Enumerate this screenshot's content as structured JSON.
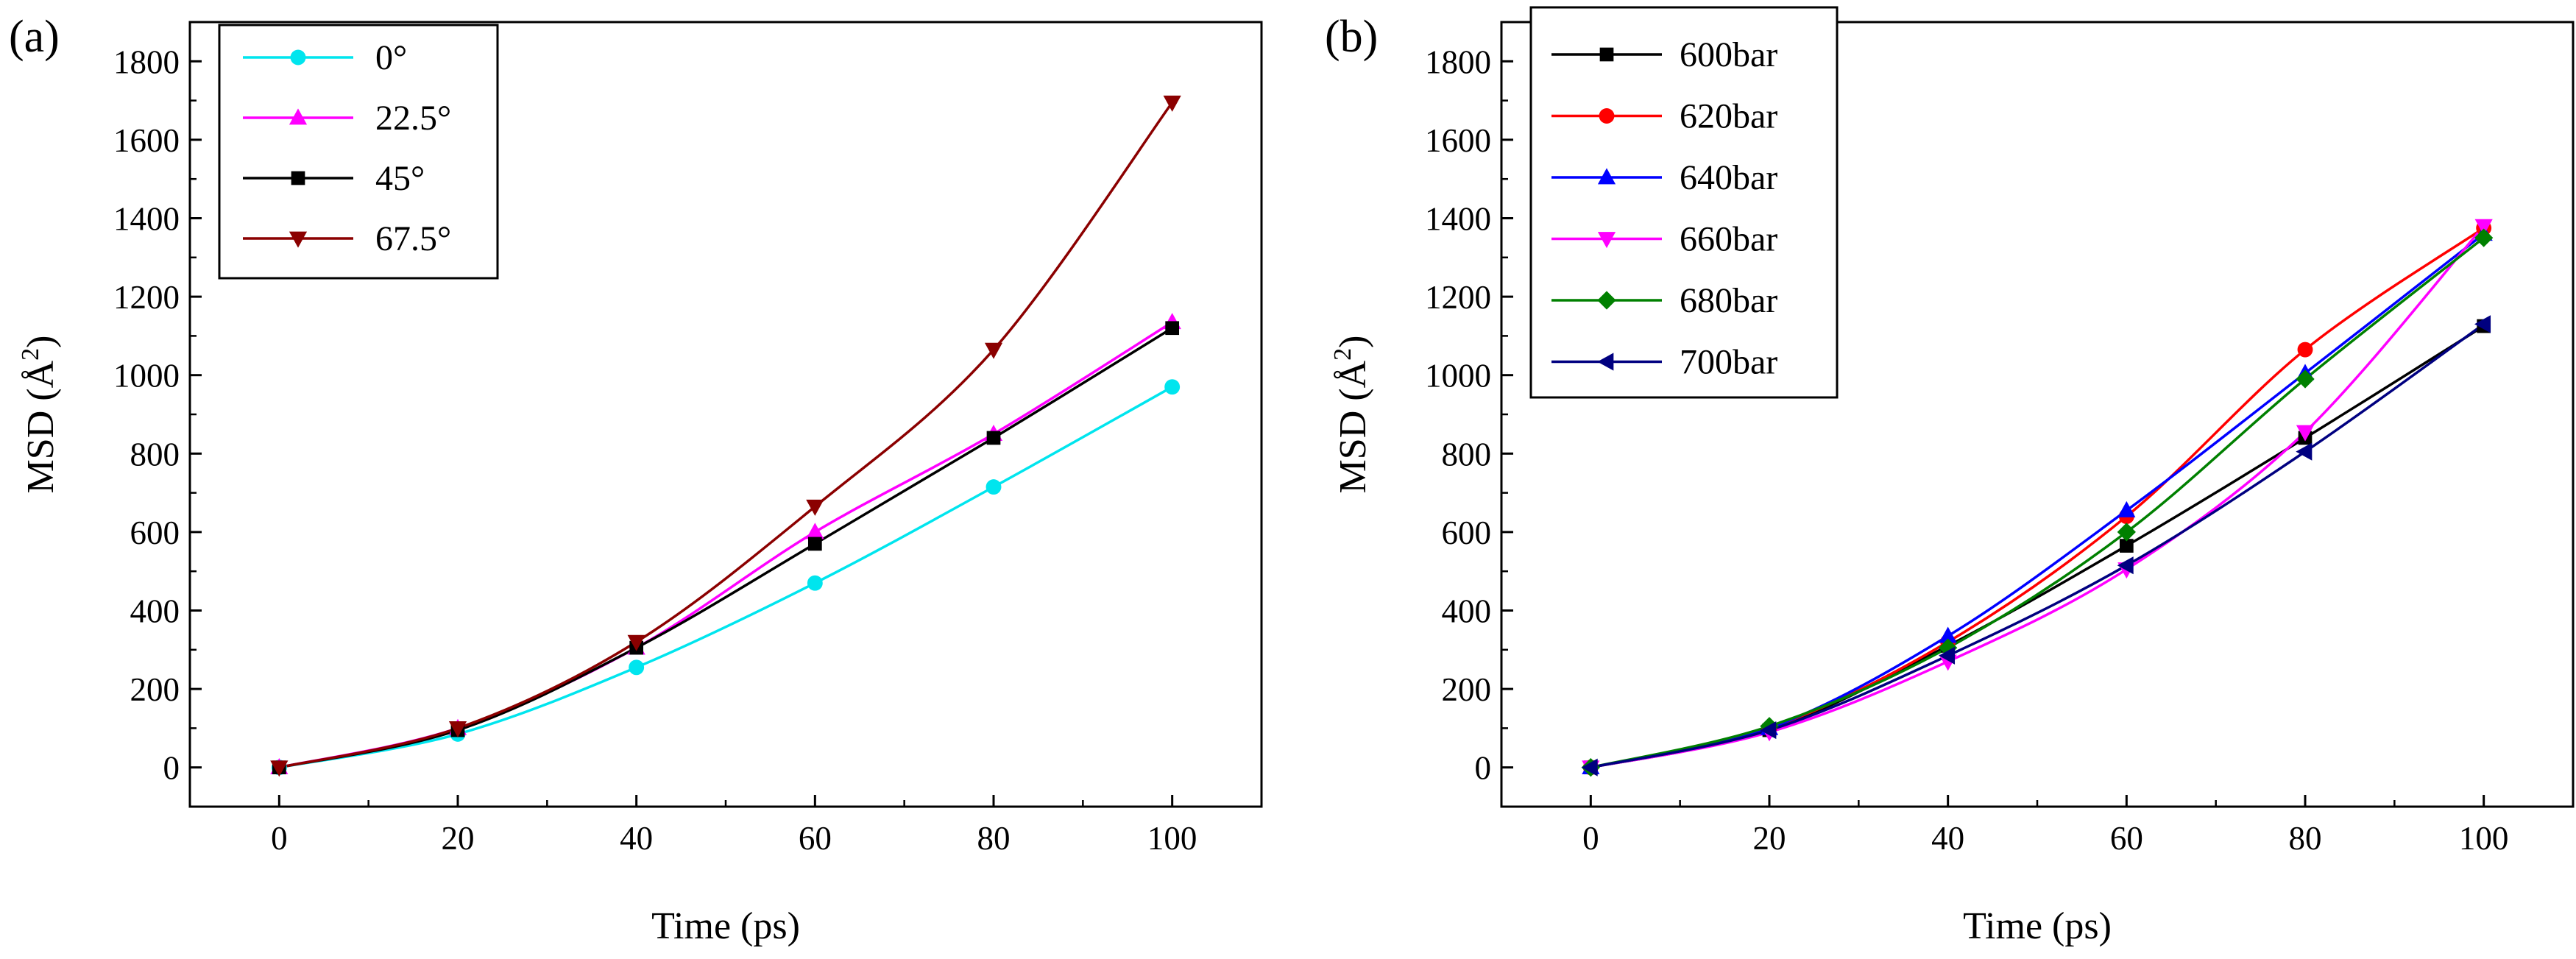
{
  "chart_data": [
    {
      "type": "line",
      "panel_label": "(a)",
      "xlabel": "Time (ps)",
      "ylabel_prefix": "MSD (Å",
      "ylabel_sup": "2",
      "ylabel_suffix": ")",
      "xlim": [
        -10,
        110
      ],
      "ylim": [
        -100,
        1900
      ],
      "xticks": [
        0,
        20,
        40,
        60,
        80,
        100
      ],
      "yticks": [
        0,
        200,
        400,
        600,
        800,
        1000,
        1200,
        1400,
        1600,
        1800
      ],
      "x": [
        0,
        20,
        40,
        60,
        80,
        100
      ],
      "legend_position": "top-left",
      "series": [
        {
          "name": "0°",
          "color": "#00e5ee",
          "marker": "circle",
          "values": [
            0,
            85,
            255,
            470,
            715,
            970
          ]
        },
        {
          "name": "22.5°",
          "color": "#ff00ff",
          "marker": "triangle-up",
          "values": [
            0,
            100,
            305,
            600,
            850,
            1135
          ]
        },
        {
          "name": "45°",
          "color": "#000000",
          "marker": "square",
          "values": [
            0,
            95,
            305,
            570,
            840,
            1120
          ]
        },
        {
          "name": "67.5°",
          "color": "#8b0000",
          "marker": "triangle-down",
          "values": [
            0,
            100,
            320,
            665,
            1065,
            1695
          ]
        }
      ]
    },
    {
      "type": "line",
      "panel_label": "(b)",
      "xlabel": "Time (ps)",
      "ylabel_prefix": "MSD (Å",
      "ylabel_sup": "2",
      "ylabel_suffix": ")",
      "xlim": [
        -10,
        110
      ],
      "ylim": [
        -100,
        1900
      ],
      "xticks": [
        0,
        20,
        40,
        60,
        80,
        100
      ],
      "yticks": [
        0,
        200,
        400,
        600,
        800,
        1000,
        1200,
        1400,
        1600,
        1800
      ],
      "x": [
        0,
        20,
        40,
        60,
        80,
        100
      ],
      "legend_position": "top-left",
      "series": [
        {
          "name": "600bar",
          "color": "#000000",
          "marker": "square",
          "values": [
            0,
            95,
            310,
            565,
            840,
            1125
          ]
        },
        {
          "name": "620bar",
          "color": "#ff0000",
          "marker": "circle",
          "values": [
            0,
            100,
            320,
            640,
            1065,
            1375
          ]
        },
        {
          "name": "640bar",
          "color": "#0000ff",
          "marker": "triangle-up",
          "values": [
            0,
            100,
            335,
            655,
            1005,
            1360
          ]
        },
        {
          "name": "660bar",
          "color": "#ff00ff",
          "marker": "triangle-down",
          "values": [
            0,
            90,
            270,
            505,
            855,
            1380
          ]
        },
        {
          "name": "680bar",
          "color": "#008000",
          "marker": "diamond",
          "values": [
            0,
            105,
            305,
            600,
            990,
            1350
          ]
        },
        {
          "name": "700bar",
          "color": "#000080",
          "marker": "triangle-left",
          "values": [
            0,
            95,
            285,
            515,
            805,
            1130
          ]
        }
      ]
    }
  ]
}
